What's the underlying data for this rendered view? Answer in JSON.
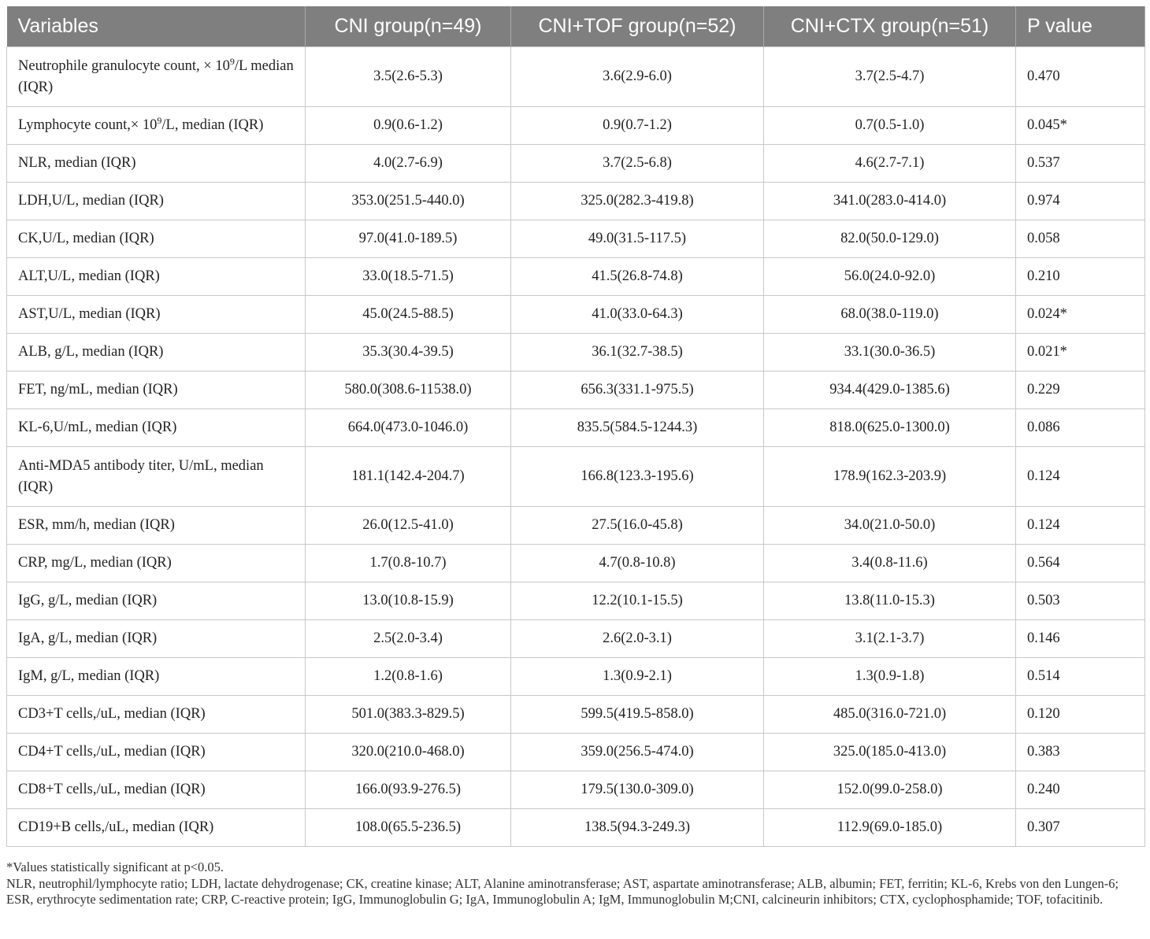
{
  "table": {
    "headers": [
      "Variables",
      "CNI group(n=49)",
      "CNI+TOF group(n=52)",
      "CNI+CTX group(n=51)",
      "P value"
    ],
    "header_bg": "#7f7f7f",
    "rows": [
      {
        "label_pre": "Neutrophile granulocyte count, × 10",
        "label_sup": "9",
        "label_post": "/L median (IQR)",
        "tall": true,
        "cni": "3.5(2.6-5.3)",
        "tof": "3.6(2.9-6.0)",
        "ctx": "3.7(2.5-4.7)",
        "p": "0.470"
      },
      {
        "label_pre": "Lymphocyte count,× 10",
        "label_sup": "9",
        "label_post": "/L, median (IQR)",
        "cni": "0.9(0.6-1.2)",
        "tof": "0.9(0.7-1.2)",
        "ctx": "0.7(0.5-1.0)",
        "p": "0.045*"
      },
      {
        "label_pre": "NLR, median (IQR)",
        "cni": "4.0(2.7-6.9)",
        "tof": "3.7(2.5-6.8)",
        "ctx": "4.6(2.7-7.1)",
        "p": "0.537"
      },
      {
        "label_pre": "LDH,U/L, median (IQR)",
        "cni": "353.0(251.5-440.0)",
        "tof": "325.0(282.3-419.8)",
        "ctx": "341.0(283.0-414.0)",
        "p": "0.974"
      },
      {
        "label_pre": "CK,U/L, median (IQR)",
        "cni": "97.0(41.0-189.5)",
        "tof": "49.0(31.5-117.5)",
        "ctx": "82.0(50.0-129.0)",
        "p": "0.058"
      },
      {
        "label_pre": "ALT,U/L, median (IQR)",
        "cni": "33.0(18.5-71.5)",
        "tof": "41.5(26.8-74.8)",
        "ctx": "56.0(24.0-92.0)",
        "p": "0.210"
      },
      {
        "label_pre": "AST,U/L, median (IQR)",
        "cni": "45.0(24.5-88.5)",
        "tof": "41.0(33.0-64.3)",
        "ctx": "68.0(38.0-119.0)",
        "p": "0.024*"
      },
      {
        "label_pre": "ALB, g/L, median (IQR)",
        "cni": "35.3(30.4-39.5)",
        "tof": "36.1(32.7-38.5)",
        "ctx": "33.1(30.0-36.5)",
        "p": "0.021*"
      },
      {
        "label_pre": "FET, ng/mL, median (IQR)",
        "cni": "580.0(308.6-11538.0)",
        "tof": "656.3(331.1-975.5)",
        "ctx": "934.4(429.0-1385.6)",
        "p": "0.229"
      },
      {
        "label_pre": "KL-6,U/mL, median (IQR)",
        "cni": "664.0(473.0-1046.0)",
        "tof": "835.5(584.5-1244.3)",
        "ctx": "818.0(625.0-1300.0)",
        "p": "0.086"
      },
      {
        "label_pre": "Anti-MDA5 antibody titer, U/mL, median (IQR)",
        "tall": true,
        "cni": "181.1(142.4-204.7)",
        "tof": "166.8(123.3-195.6)",
        "ctx": "178.9(162.3-203.9)",
        "p": "0.124"
      },
      {
        "label_pre": "ESR, mm/h, median (IQR)",
        "cni": "26.0(12.5-41.0)",
        "tof": "27.5(16.0-45.8)",
        "ctx": "34.0(21.0-50.0)",
        "p": "0.124"
      },
      {
        "label_pre": "CRP, mg/L, median (IQR)",
        "cni": "1.7(0.8-10.7)",
        "tof": "4.7(0.8-10.8)",
        "ctx": "3.4(0.8-11.6)",
        "p": "0.564"
      },
      {
        "label_pre": "IgG, g/L, median (IQR)",
        "cni": "13.0(10.8-15.9)",
        "tof": "12.2(10.1-15.5)",
        "ctx": "13.8(11.0-15.3)",
        "p": "0.503"
      },
      {
        "label_pre": "IgA, g/L, median (IQR)",
        "cni": "2.5(2.0-3.4)",
        "tof": "2.6(2.0-3.1)",
        "ctx": "3.1(2.1-3.7)",
        "p": "0.146"
      },
      {
        "label_pre": "IgM, g/L, median (IQR)",
        "cni": "1.2(0.8-1.6)",
        "tof": "1.3(0.9-2.1)",
        "ctx": "1.3(0.9-1.8)",
        "p": "0.514"
      },
      {
        "label_pre": "CD3+T cells,/uL, median (IQR)",
        "cni": "501.0(383.3-829.5)",
        "tof": "599.5(419.5-858.0)",
        "ctx": "485.0(316.0-721.0)",
        "p": "0.120"
      },
      {
        "label_pre": "CD4+T cells,/uL, median (IQR)",
        "cni": "320.0(210.0-468.0)",
        "tof": "359.0(256.5-474.0)",
        "ctx": "325.0(185.0-413.0)",
        "p": "0.383"
      },
      {
        "label_pre": "CD8+T cells,/uL, median (IQR)",
        "cni": "166.0(93.9-276.5)",
        "tof": "179.5(130.0-309.0)",
        "ctx": "152.0(99.0-258.0)",
        "p": "0.240"
      },
      {
        "label_pre": "CD19+B cells,/uL, median (IQR)",
        "cni": "108.0(65.5-236.5)",
        "tof": "138.5(94.3-249.3)",
        "ctx": "112.9(69.0-185.0)",
        "p": "0.307"
      }
    ]
  },
  "footnotes": {
    "significance": "*Values statistically significant at p<0.05.",
    "abbreviations": "NLR, neutrophil/lymphocyte ratio; LDH, lactate dehydrogenase; CK, creatine kinase; ALT, Alanine aminotransferase; AST, aspartate aminotransferase; ALB, albumin; FET, ferritin; KL-6, Krebs von den Lungen-6; ESR, erythrocyte sedimentation rate; CRP, C-reactive protein; IgG, Immunoglobulin G; IgA, Immunoglobulin A; IgM, Immunoglobulin M;CNI, calcineurin inhibitors; CTX, cyclophosphamide; TOF, tofacitinib."
  }
}
